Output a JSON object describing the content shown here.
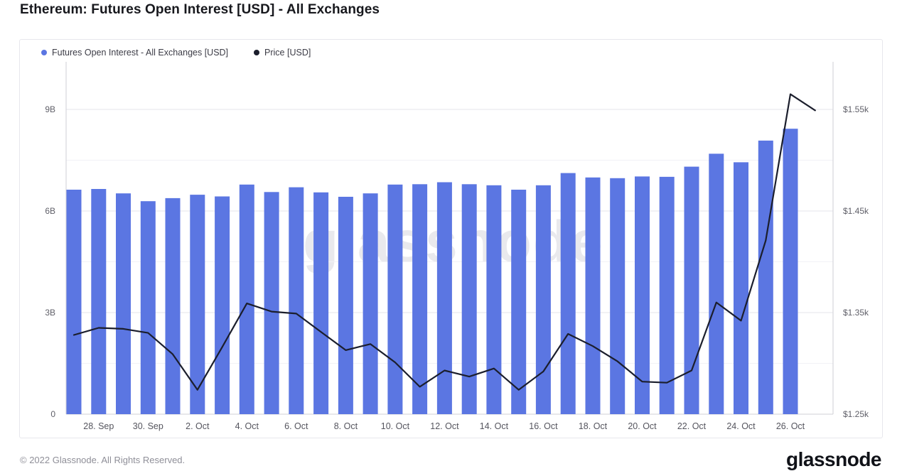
{
  "page": {
    "title": "Ethereum: Futures Open Interest [USD] - All Exchanges",
    "watermark": "glassnode",
    "footer_copyright": "© 2022 Glassnode. All Rights Reserved.",
    "footer_logo": "glassnode"
  },
  "legend": [
    {
      "label": "Futures Open Interest - All Exchanges [USD]",
      "color": "#5b76e2"
    },
    {
      "label": "Price [USD]",
      "color": "#1b1e2c"
    }
  ],
  "chart_data": {
    "type": "bar",
    "title": "Ethereum: Futures Open Interest [USD] - All Exchanges",
    "dates": [
      "27. Sep",
      "28. Sep",
      "29. Sep",
      "30. Sep",
      "1. Oct",
      "2. Oct",
      "3. Oct",
      "4. Oct",
      "5. Oct",
      "6. Oct",
      "7. Oct",
      "8. Oct",
      "9. Oct",
      "10. Oct",
      "11. Oct",
      "12. Oct",
      "13. Oct",
      "14. Oct",
      "15. Oct",
      "16. Oct",
      "17. Oct",
      "18. Oct",
      "19. Oct",
      "20. Oct",
      "21. Oct",
      "22. Oct",
      "23. Oct",
      "24. Oct",
      "25. Oct",
      "26. Oct",
      "27. Oct"
    ],
    "x_tick_labels": [
      "28. Sep",
      "30. Sep",
      "2. Oct",
      "4. Oct",
      "6. Oct",
      "8. Oct",
      "10. Oct",
      "12. Oct",
      "14. Oct",
      "16. Oct",
      "18. Oct",
      "20. Oct",
      "22. Oct",
      "24. Oct",
      "26. Oct"
    ],
    "series": [
      {
        "name": "Futures Open Interest - All Exchanges [USD]",
        "type": "bar",
        "unit": "billion USD",
        "color": "#5b76e2",
        "values": [
          6.63,
          6.65,
          6.52,
          6.29,
          6.38,
          6.48,
          6.43,
          6.78,
          6.56,
          6.7,
          6.55,
          6.42,
          6.52,
          6.78,
          6.79,
          6.85,
          6.79,
          6.76,
          6.63,
          6.76,
          7.12,
          6.99,
          6.97,
          7.02,
          7.01,
          7.31,
          7.69,
          7.44,
          8.08,
          8.43,
          null
        ]
      },
      {
        "name": "Price [USD]",
        "type": "line",
        "unit": "thousand USD",
        "color": "#1b1e2c",
        "values": [
          1.328,
          1.335,
          1.334,
          1.33,
          1.309,
          1.274,
          1.316,
          1.359,
          1.351,
          1.349,
          1.331,
          1.313,
          1.319,
          1.301,
          1.277,
          1.293,
          1.287,
          1.295,
          1.274,
          1.292,
          1.329,
          1.317,
          1.302,
          1.282,
          1.281,
          1.293,
          1.36,
          1.342,
          1.421,
          1.565,
          1.549
        ]
      }
    ],
    "left_axis": {
      "label_values": [
        0,
        3,
        6,
        9
      ],
      "tick_labels": [
        "0",
        "3B",
        "6B",
        "9B"
      ],
      "range_B": [
        0,
        10.4
      ],
      "gridline_step_B": 1.5
    },
    "right_axis": {
      "label_values": [
        1.25,
        1.35,
        1.45,
        1.55
      ],
      "tick_labels": [
        "$1.25k",
        "$1.35k",
        "$1.45k",
        "$1.55k"
      ],
      "range_k": [
        1.25,
        1.597
      ]
    },
    "grid": "horizontal only",
    "legend_position": "top-left"
  }
}
